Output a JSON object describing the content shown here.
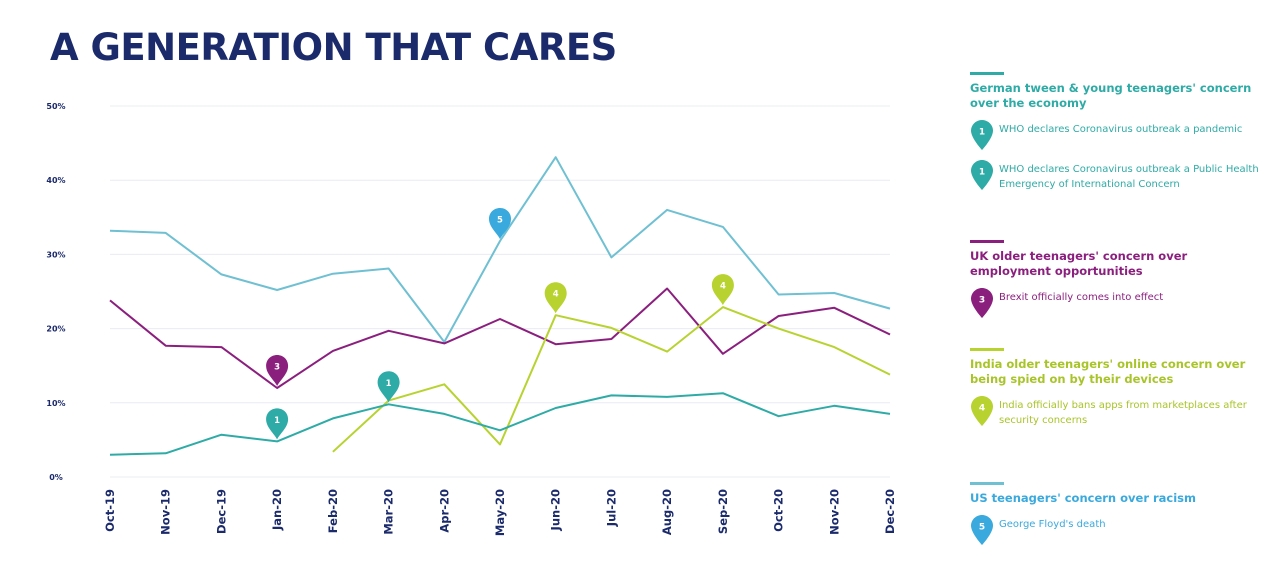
{
  "title": "A GENERATION THAT CARES",
  "colors": {
    "title": "#1b2a6b",
    "axis_text": "#1b2a6b",
    "grid": "#e9ecf2",
    "germany": "#2eaba6",
    "uk": "#8b1f7e",
    "india": "#b8d230",
    "us": "#6fc0d2"
  },
  "legend": {
    "germany": {
      "heading": "German tween & young teenagers' concern over the economy",
      "events": [
        {
          "number": "1",
          "text": "WHO declares Coronavirus outbreak a pandemic"
        },
        {
          "number": "1",
          "text": "WHO declares Coronavirus outbreak a Public Health Emergency of International Concern"
        }
      ]
    },
    "uk": {
      "heading": "UK older teenagers' concern over employment opportunities",
      "events": [
        {
          "number": "3",
          "text": "Brexit officially comes into effect"
        }
      ]
    },
    "india": {
      "heading": "India older teenagers' online concern over being spied on by their devices",
      "events": [
        {
          "number": "4",
          "text": "India officially bans apps from marketplaces after security concerns"
        }
      ]
    },
    "us": {
      "heading": "US teenagers' concern over racism",
      "events": [
        {
          "number": "5",
          "text": "George Floyd's death"
        }
      ]
    }
  },
  "chart_data": {
    "type": "line",
    "categories": [
      "Oct-19",
      "Nov-19",
      "Dec-19",
      "Jan-20",
      "Feb-20",
      "Mar-20",
      "Apr-20",
      "May-20",
      "Jun-20",
      "Jul-20",
      "Aug-20",
      "Sep-20",
      "Oct-20",
      "Nov-20",
      "Dec-20"
    ],
    "y_ticks": [
      "0%",
      "10%",
      "20%",
      "30%",
      "40%",
      "50%"
    ],
    "ylim": [
      0,
      50
    ],
    "grid": true,
    "legend_position": "right",
    "series": [
      {
        "key": "us",
        "name": "US teenagers' concern over racism",
        "color": "#6fc0d2",
        "values": [
          33.2,
          32.9,
          27.3,
          25.2,
          27.4,
          28.1,
          18.2,
          31.8,
          43.1,
          29.6,
          36.0,
          33.7,
          24.6,
          24.8,
          22.7
        ]
      },
      {
        "key": "uk",
        "name": "UK older teenagers' concern over employment opportunities",
        "color": "#8b1f7e",
        "values": [
          23.8,
          17.7,
          17.5,
          12.0,
          17.0,
          19.7,
          18.0,
          21.3,
          17.9,
          18.6,
          25.4,
          16.6,
          21.7,
          22.8,
          19.2
        ]
      },
      {
        "key": "india",
        "name": "India older teenagers' online concern over being spied on by their devices",
        "color": "#b8d230",
        "values": [
          null,
          null,
          null,
          null,
          3.4,
          10.3,
          12.5,
          4.4,
          21.8,
          20.1,
          16.9,
          22.9,
          20.0,
          17.5,
          13.8
        ]
      },
      {
        "key": "germany",
        "name": "German tween & young teenagers' concern over the economy",
        "color": "#2eaba6",
        "values": [
          3.0,
          3.2,
          5.7,
          4.8,
          7.9,
          9.8,
          8.5,
          6.3,
          9.3,
          11.0,
          10.8,
          11.3,
          8.2,
          9.6,
          8.5
        ]
      }
    ],
    "markers": [
      {
        "number": "1",
        "category": "Jan-20",
        "series": "germany",
        "color": "#2eaba6"
      },
      {
        "number": "3",
        "category": "Jan-20",
        "series": "uk",
        "color": "#8b1f7e"
      },
      {
        "number": "1",
        "category": "Mar-20",
        "series": "germany",
        "color": "#2eaba6"
      },
      {
        "number": "5",
        "category": "May-20",
        "series": "us",
        "color": "#3aa9dd"
      },
      {
        "number": "4",
        "category": "Jun-20",
        "series": "india",
        "color": "#b8d230"
      },
      {
        "number": "4",
        "category": "Sep-20",
        "series": "india",
        "color": "#b8d230"
      }
    ]
  }
}
